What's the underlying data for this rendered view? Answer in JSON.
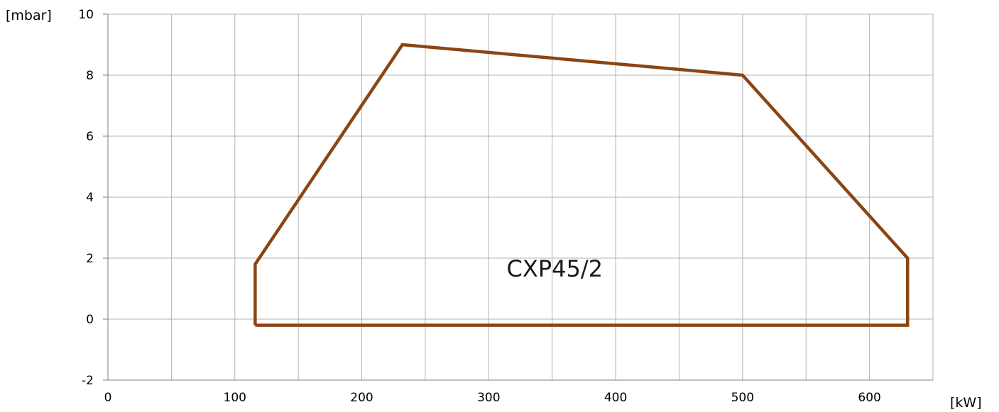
{
  "chart_data": {
    "type": "line",
    "xlabel": "[kW]",
    "ylabel": "[mbar]",
    "xlim": [
      0,
      650
    ],
    "ylim": [
      -2,
      10
    ],
    "x_ticks": [
      0,
      100,
      200,
      300,
      400,
      500,
      600
    ],
    "y_ticks": [
      -2,
      0,
      2,
      4,
      6,
      8,
      10
    ],
    "x_minor_step": 50,
    "grid": true,
    "series": [
      {
        "color": "#8b4513",
        "points": [
          [
            116,
            -0.2
          ],
          [
            116,
            1.8
          ],
          [
            232,
            9.0
          ],
          [
            500,
            8.0
          ],
          [
            630,
            2.0
          ],
          [
            630,
            -0.2
          ],
          [
            116,
            -0.2
          ]
        ]
      }
    ],
    "annotation": {
      "text": "CXP45/2",
      "x": 352,
      "y": 1.4
    }
  }
}
